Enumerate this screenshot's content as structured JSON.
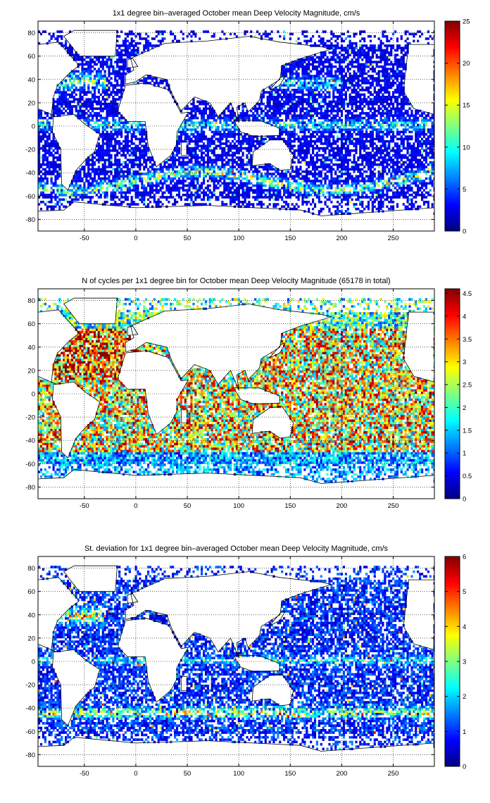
{
  "figure": {
    "background": "#ffffff"
  },
  "colormap": "jet",
  "chart_data": [
    {
      "type": "heatmap",
      "title": "1x1 degree bin–averaged October mean Deep Velocity Magnitude, cm/s",
      "xlabel": "",
      "ylabel": "",
      "xlim": [
        -95,
        290
      ],
      "ylim": [
        -90,
        90
      ],
      "xticks": [
        -50,
        0,
        50,
        100,
        150,
        200,
        250
      ],
      "yticks": [
        -80,
        -60,
        -40,
        -20,
        0,
        20,
        40,
        60,
        80
      ],
      "grid": true,
      "colorbar": {
        "range": [
          0,
          25
        ],
        "ticks": [
          0,
          5,
          10,
          15,
          20,
          25
        ]
      },
      "field": "velocity",
      "seed": 11,
      "values_summary": "Mostly 0–5 cm/s; bands of 10–20 cm/s along the equator, the Gulf Stream, the Kuroshio and the Antarctic Circumpolar Current."
    },
    {
      "type": "heatmap",
      "title": "N of cycles per 1x1 degree bin for October mean Deep Velocity Magnitude (65178 in total)",
      "xlabel": "",
      "ylabel": "",
      "xlim": [
        -95,
        290
      ],
      "ylim": [
        -90,
        90
      ],
      "xticks": [
        -50,
        0,
        50,
        100,
        150,
        200,
        250
      ],
      "yticks": [
        -80,
        -60,
        -40,
        -20,
        0,
        20,
        40,
        60,
        80
      ],
      "grid": true,
      "total_cycles": 65178,
      "colorbar": {
        "range": [
          0,
          4.6
        ],
        "ticks": [
          0,
          0.5,
          1,
          1.5,
          2,
          2.5,
          3,
          3.5,
          4,
          4.5
        ]
      },
      "field": "counts",
      "seed": 23,
      "values_summary": "Dense coverage (3–4.6) across North Atlantic, tropical and South Pacific and Indian Oceans; sparse (0.5–2) in the Southern Ocean."
    },
    {
      "type": "heatmap",
      "title": "St. deviation for 1x1 degree bin–averaged October mean Deep Velocity Magnitude, cm/s",
      "xlabel": "",
      "ylabel": "",
      "xlim": [
        -95,
        290
      ],
      "ylim": [
        -90,
        90
      ],
      "xticks": [
        -50,
        0,
        50,
        100,
        150,
        200,
        250
      ],
      "yticks": [
        -80,
        -60,
        -40,
        -20,
        0,
        20,
        40,
        60,
        80
      ],
      "grid": true,
      "colorbar": {
        "range": [
          0,
          6
        ],
        "ticks": [
          0,
          1,
          2,
          3,
          4,
          5,
          6
        ]
      },
      "field": "stdev",
      "seed": 37,
      "values_summary": "Mostly 0–2 cm/s; highs of 4–6 cm/s along the ACC near 45°S, the Gulf Stream, and the equatorial Pacific."
    }
  ]
}
